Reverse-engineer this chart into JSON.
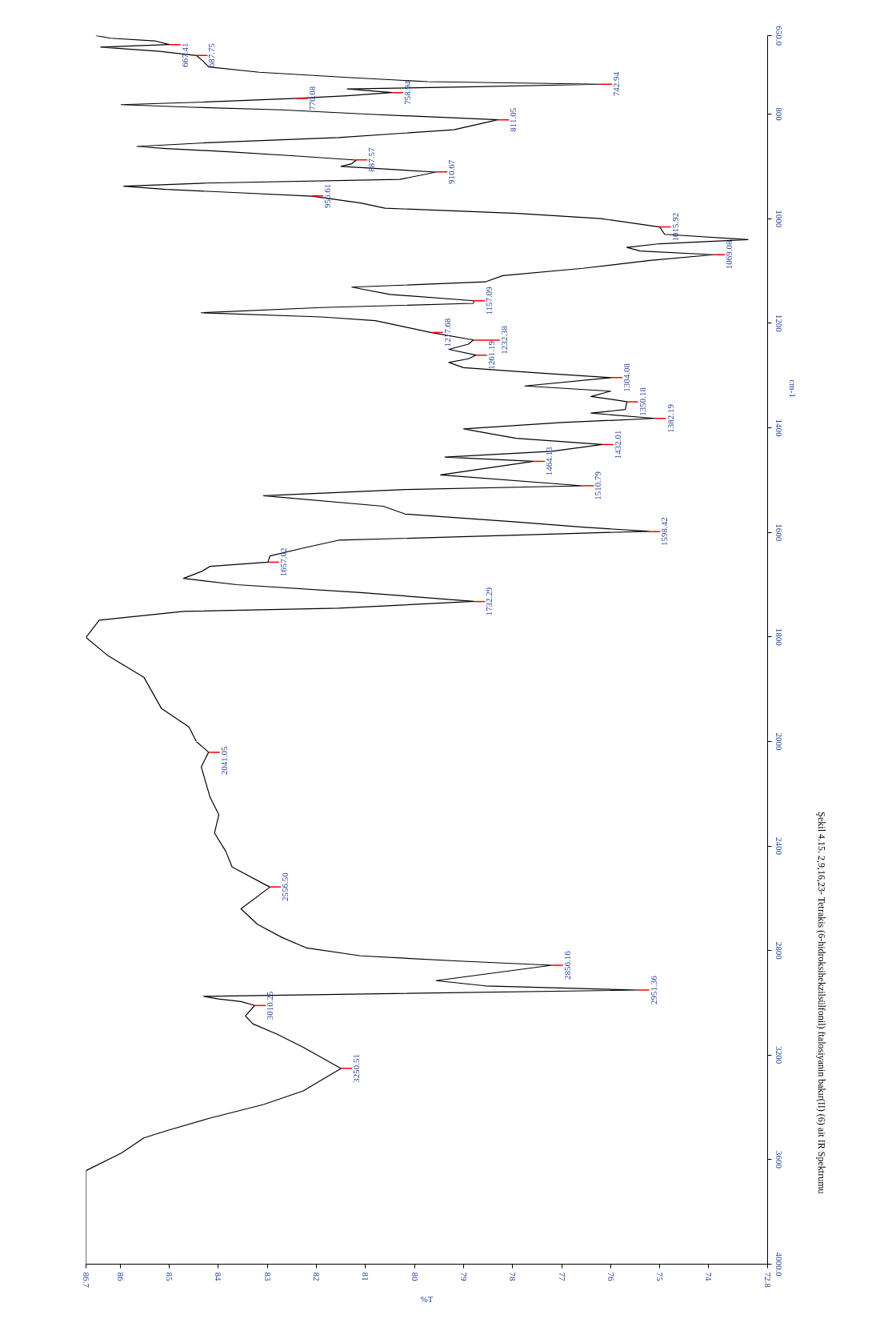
{
  "chart_data": [
    {
      "type": "line",
      "ylabel": "cm-1",
      "tick_labels": "y",
      "color": "#000000",
      "xlim": [
        86.7,
        72.8
      ],
      "ylim": [
        2000,
        650
      ],
      "xticks": [
        86.7,
        86,
        85,
        84,
        83,
        82,
        81,
        80,
        79,
        78,
        77,
        76,
        75,
        74,
        72.8
      ],
      "yticks": [
        2000,
        1800,
        1600,
        1400,
        1200,
        1000,
        800,
        {
          "value": 650,
          "label": "650.0"
        }
      ],
      "values": [
        2000,
        1972,
        1937,
        1877,
        1836,
        1801,
        1768,
        1751,
        1745,
        1732,
        1715,
        1700,
        1688,
        1675,
        1665,
        1657,
        1645,
        1630,
        1615,
        1598,
        1590,
        1580,
        1565,
        1550,
        1530,
        1518,
        1511,
        1490,
        1464,
        1456,
        1445,
        1432,
        1420,
        1402,
        1390,
        1382,
        1372,
        1365,
        1350,
        1340,
        1330,
        1320,
        1304,
        1295,
        1285,
        1275,
        1268,
        1261,
        1250,
        1240,
        1232,
        1218,
        1205,
        1195,
        1188,
        1180,
        1170,
        1162,
        1157,
        1145,
        1131,
        1121,
        1109,
        1095,
        1080,
        1069,
        1062,
        1055,
        1048,
        1040,
        1030,
        1016,
        1000,
        990,
        980,
        970,
        957,
        950,
        944,
        938,
        932,
        925,
        911,
        900,
        895,
        888,
        880,
        872,
        866,
        862,
        855,
        845,
        830,
        811,
        800,
        792,
        787,
        782,
        777,
        770,
        765,
        759,
        752,
        748,
        743,
        738,
        730,
        720,
        710,
        700,
        688,
        680,
        672,
        667,
        660,
        655,
        650
      ],
      "x": [
        84.45,
        84.6,
        85.16,
        85.52,
        86.25,
        86.7,
        86.43,
        84.71,
        81.55,
        78.79,
        81.1,
        83.63,
        84.71,
        84.35,
        84.17,
        82.99,
        82.95,
        82.27,
        81.55,
        75.22,
        76.57,
        77.93,
        80.19,
        80.64,
        83.08,
        80.19,
        76.57,
        79.47,
        77.57,
        79.38,
        77.2,
        76.17,
        77.93,
        79.0,
        77.0,
        75.1,
        76.4,
        75.7,
        75.67,
        76.4,
        76.0,
        77.75,
        75.99,
        77.5,
        79.0,
        79.3,
        78.9,
        78.75,
        79.3,
        78.9,
        78.8,
        79.65,
        80.3,
        80.8,
        81.9,
        84.35,
        81.9,
        78.8,
        78.79,
        80.5,
        81.28,
        78.56,
        78.2,
        76.57,
        75.2,
        73.9,
        75.4,
        75.67,
        75.0,
        73.2,
        74.9,
        75.0,
        76.2,
        77.9,
        80.6,
        81.1,
        82.09,
        83.7,
        85.07,
        85.93,
        84.26,
        80.3,
        79.56,
        81.5,
        81.28,
        81.19,
        82.45,
        83.8,
        85.07,
        85.66,
        84.26,
        81.55,
        79.2,
        78.3,
        81.0,
        82.72,
        84.53,
        85.98,
        84.26,
        82.4,
        81.37,
        80.46,
        81.37,
        79.0,
        76.2,
        79.74,
        81.37,
        83.17,
        84.2,
        84.3,
        84.45,
        85.2,
        86.4,
        85.0,
        85.3,
        86.2,
        86.5
      ],
      "annotations": [
        {
          "text": "1732.29",
          "x": 78.79,
          "y": 1732.29
        },
        {
          "text": "1657.02",
          "x": 82.99,
          "y": 1657.02
        },
        {
          "text": "1598.42",
          "x": 75.22,
          "y": 1598.42
        },
        {
          "text": "1510.79",
          "x": 76.57,
          "y": 1510.79
        },
        {
          "text": "1464.13",
          "x": 77.57,
          "y": 1464.13
        },
        {
          "text": "1432.01",
          "x": 76.17,
          "y": 1432.01
        },
        {
          "text": "1382.19",
          "x": 75.1,
          "y": 1382.19
        },
        {
          "text": "1350.18",
          "x": 75.67,
          "y": 1350.18
        },
        {
          "text": "1304.08",
          "x": 75.99,
          "y": 1304.08
        },
        {
          "text": "1261.19",
          "x": 78.75,
          "y": 1261.19
        },
        {
          "text": "1232.38",
          "x": 78.8,
          "y": 1232.38
        },
        {
          "text": "1217.68",
          "x": 79.65,
          "y": 1217.68
        },
        {
          "text": "1157.09",
          "x": 78.79,
          "y": 1157.09
        },
        {
          "text": "1069.08",
          "x": 73.9,
          "y": 1069.08
        },
        {
          "text": "1015.92",
          "x": 75.0,
          "y": 1015.92
        },
        {
          "text": "956.61",
          "x": 82.09,
          "y": 956.61
        },
        {
          "text": "910.67",
          "x": 79.56,
          "y": 910.67
        },
        {
          "text": "887.57",
          "x": 81.19,
          "y": 887.57
        },
        {
          "text": "811.05",
          "x": 78.3,
          "y": 811.05
        },
        {
          "text": "770.08",
          "x": 82.4,
          "y": 770.08
        },
        {
          "text": "758.94",
          "x": 80.46,
          "y": 758.94
        },
        {
          "text": "742.94",
          "x": 76.2,
          "y": 742.94
        },
        {
          "text": "687.75",
          "x": 84.45,
          "y": 687.75
        },
        {
          "text": "667.41",
          "x": 85.0,
          "y": 667.41
        }
      ]
    },
    {
      "type": "line",
      "xlabel": "%T",
      "color": "#000000",
      "xlim": [
        86.7,
        72.8
      ],
      "ylim": [
        4000,
        2000
      ],
      "xticks": [
        86.7,
        86,
        85,
        84,
        83,
        82,
        81,
        80,
        79,
        78,
        77,
        76,
        75,
        74,
        72.8
      ],
      "yticks": [
        {
          "value": 4000,
          "label": "4000.0"
        },
        3600,
        3200,
        2800,
        2400
      ],
      "values": [
        4000,
        3642,
        3575,
        3517,
        3490,
        3441,
        3389,
        3337,
        3251,
        3170,
        3120,
        3080,
        3050,
        3010,
        2995,
        2985,
        2975,
        2951,
        2935,
        2915,
        2856,
        2840,
        2820,
        2790,
        2750,
        2700,
        2640,
        2557,
        2480,
        2420,
        2350,
        2280,
        2213,
        2097,
        2041,
        2000
      ],
      "x": [
        86.7,
        86.7,
        85.98,
        85.52,
        85.07,
        84.17,
        83.08,
        82.27,
        81.5,
        82.27,
        82.8,
        83.3,
        83.45,
        83.26,
        83.54,
        84.0,
        84.3,
        75.44,
        78.56,
        79.56,
        77.2,
        79.1,
        81.1,
        82.2,
        82.7,
        83.2,
        83.54,
        82.95,
        83.72,
        83.85,
        84.08,
        83.99,
        84.17,
        84.35,
        84.2,
        84.45
      ],
      "annotations": [
        {
          "text": "3250.51",
          "x": 81.5,
          "y": 3250.51
        },
        {
          "text": "3010.25",
          "x": 83.26,
          "y": 3010.25
        },
        {
          "text": "2951.36",
          "x": 75.44,
          "y": 2951.36
        },
        {
          "text": "2856.16",
          "x": 77.2,
          "y": 2856.16
        },
        {
          "text": "2556.50",
          "x": 82.95,
          "y": 2556.5
        },
        {
          "text": "2041.05",
          "x": 84.2,
          "y": 2041.05
        },
        "Şekil 4.15. 2,9,16,23- Tetrakis (6-hidroksihekzilsülfonil) ftalosiyanin bakır(II) (6) ait IR Spektrumu"
      ]
    }
  ]
}
